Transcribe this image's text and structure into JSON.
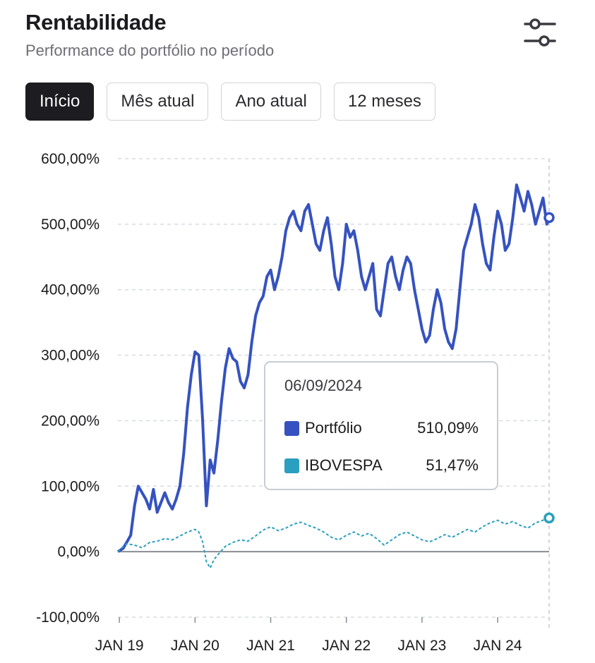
{
  "header": {
    "title": "Rentabilidade",
    "subtitle": "Performance do portfólio no período"
  },
  "toolbar": {
    "settings_icon": "sliders-icon"
  },
  "tabs": [
    {
      "label": "Início",
      "active": true
    },
    {
      "label": "Mês atual",
      "active": false
    },
    {
      "label": "Ano atual",
      "active": false
    },
    {
      "label": "12 meses",
      "active": false
    }
  ],
  "tooltip": {
    "date": "06/09/2024",
    "rows": [
      {
        "name": "Portfólio",
        "value": "510,09%",
        "color": "#3552c0"
      },
      {
        "name": "IBOVESPA",
        "value": "51,47%",
        "color": "#2a9fbf"
      }
    ]
  },
  "chart_data": {
    "type": "line",
    "y_ticks": [
      "600,00%",
      "500,00%",
      "400,00%",
      "300,00%",
      "200,00%",
      "100,00%",
      "0,00%",
      "-100,00%"
    ],
    "y_tick_values": [
      600,
      500,
      400,
      300,
      200,
      100,
      0,
      -100
    ],
    "ylim": [
      -100,
      600
    ],
    "x_ticks": [
      "JAN 19",
      "JAN 20",
      "JAN 21",
      "JAN 22",
      "JAN 23",
      "JAN 24"
    ],
    "x_tick_values": [
      2019.0,
      2020.0,
      2021.0,
      2022.0,
      2023.0,
      2024.0
    ],
    "xlim": [
      2018.98,
      2024.68
    ],
    "grid": true,
    "series": [
      {
        "name": "Portfólio",
        "color": "#3552c0",
        "style": "solid",
        "x": [
          2018.98,
          2019.05,
          2019.1,
          2019.15,
          2019.2,
          2019.25,
          2019.3,
          2019.35,
          2019.4,
          2019.45,
          2019.5,
          2019.55,
          2019.6,
          2019.65,
          2019.7,
          2019.75,
          2019.8,
          2019.85,
          2019.9,
          2019.95,
          2020.0,
          2020.05,
          2020.1,
          2020.15,
          2020.2,
          2020.25,
          2020.3,
          2020.35,
          2020.4,
          2020.45,
          2020.5,
          2020.55,
          2020.6,
          2020.65,
          2020.7,
          2020.75,
          2020.8,
          2020.85,
          2020.9,
          2020.95,
          2021.0,
          2021.05,
          2021.1,
          2021.15,
          2021.2,
          2021.25,
          2021.3,
          2021.35,
          2021.4,
          2021.45,
          2021.5,
          2021.55,
          2021.6,
          2021.65,
          2021.7,
          2021.75,
          2021.8,
          2021.85,
          2021.9,
          2021.95,
          2022.0,
          2022.05,
          2022.1,
          2022.15,
          2022.2,
          2022.25,
          2022.3,
          2022.35,
          2022.4,
          2022.45,
          2022.5,
          2022.55,
          2022.6,
          2022.65,
          2022.7,
          2022.75,
          2022.8,
          2022.85,
          2022.9,
          2022.95,
          2023.0,
          2023.05,
          2023.1,
          2023.15,
          2023.2,
          2023.25,
          2023.3,
          2023.35,
          2023.4,
          2023.45,
          2023.5,
          2023.55,
          2023.6,
          2023.65,
          2023.7,
          2023.75,
          2023.8,
          2023.85,
          2023.9,
          2023.95,
          2024.0,
          2024.05,
          2024.1,
          2024.15,
          2024.2,
          2024.25,
          2024.3,
          2024.35,
          2024.4,
          2024.45,
          2024.5,
          2024.55,
          2024.6,
          2024.65,
          2024.68
        ],
        "values": [
          0,
          5,
          15,
          25,
          70,
          100,
          90,
          80,
          65,
          95,
          60,
          75,
          90,
          75,
          65,
          80,
          100,
          150,
          220,
          270,
          305,
          300,
          200,
          70,
          140,
          120,
          170,
          230,
          280,
          310,
          295,
          290,
          260,
          250,
          270,
          320,
          360,
          380,
          390,
          420,
          430,
          400,
          420,
          450,
          490,
          510,
          520,
          500,
          490,
          520,
          530,
          500,
          470,
          460,
          490,
          510,
          470,
          420,
          400,
          440,
          500,
          480,
          490,
          460,
          420,
          400,
          420,
          440,
          370,
          360,
          400,
          440,
          450,
          420,
          400,
          430,
          450,
          440,
          400,
          370,
          340,
          320,
          330,
          370,
          400,
          380,
          340,
          320,
          310,
          340,
          400,
          460,
          480,
          500,
          530,
          510,
          470,
          440,
          430,
          480,
          520,
          500,
          460,
          470,
          510,
          560,
          540,
          520,
          550,
          530,
          500,
          520,
          540,
          500,
          510.09
        ]
      },
      {
        "name": "IBOVESPA",
        "color": "#2a9fbf",
        "style": "dashed",
        "x": [
          2018.98,
          2019.05,
          2019.1,
          2019.2,
          2019.3,
          2019.4,
          2019.5,
          2019.6,
          2019.7,
          2019.8,
          2019.9,
          2020.0,
          2020.05,
          2020.1,
          2020.15,
          2020.2,
          2020.25,
          2020.3,
          2020.4,
          2020.5,
          2020.6,
          2020.7,
          2020.8,
          2020.9,
          2021.0,
          2021.1,
          2021.2,
          2021.3,
          2021.4,
          2021.5,
          2021.6,
          2021.7,
          2021.8,
          2021.9,
          2022.0,
          2022.1,
          2022.2,
          2022.3,
          2022.4,
          2022.5,
          2022.6,
          2022.7,
          2022.8,
          2022.9,
          2023.0,
          2023.1,
          2023.2,
          2023.3,
          2023.4,
          2023.5,
          2023.6,
          2023.7,
          2023.8,
          2023.9,
          2024.0,
          2024.1,
          2024.2,
          2024.3,
          2024.4,
          2024.5,
          2024.6,
          2024.68
        ],
        "values": [
          0,
          8,
          12,
          10,
          6,
          14,
          16,
          20,
          18,
          24,
          30,
          34,
          30,
          15,
          -15,
          -25,
          -12,
          -5,
          8,
          14,
          18,
          16,
          24,
          33,
          38,
          32,
          36,
          42,
          45,
          40,
          36,
          30,
          22,
          18,
          25,
          30,
          24,
          28,
          20,
          10,
          18,
          26,
          30,
          24,
          18,
          15,
          20,
          26,
          22,
          28,
          34,
          30,
          38,
          44,
          48,
          42,
          46,
          40,
          36,
          44,
          48,
          51.47
        ]
      }
    ]
  }
}
